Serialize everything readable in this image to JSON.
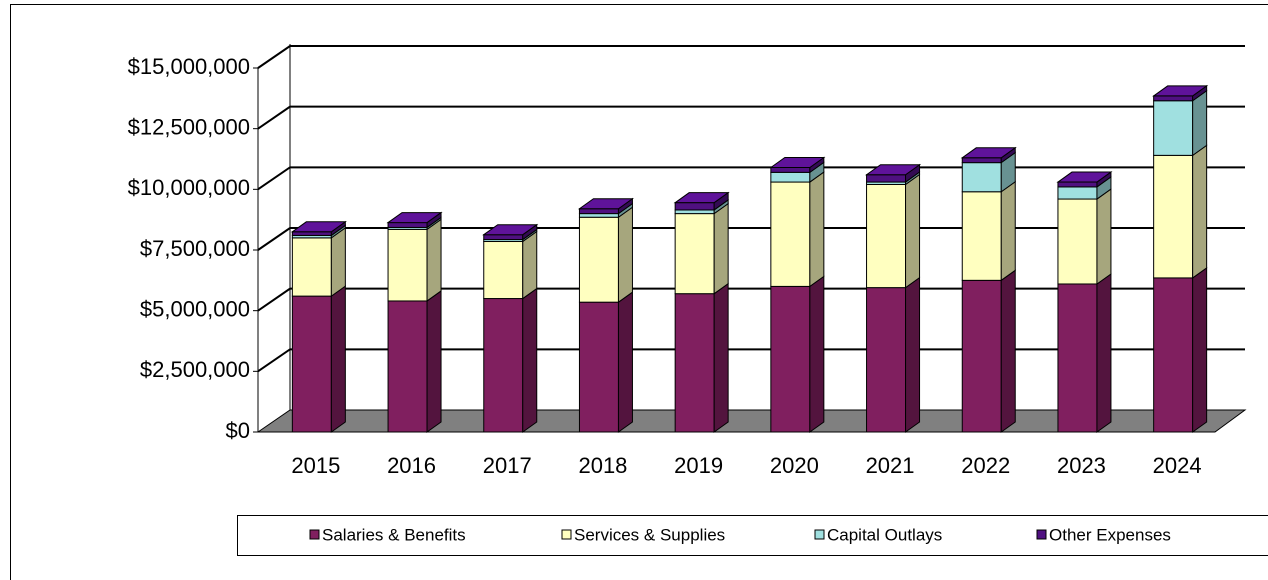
{
  "chart_data": {
    "type": "bar3d_stacked",
    "categories": [
      "2015",
      "2016",
      "2017",
      "2018",
      "2019",
      "2020",
      "2021",
      "2022",
      "2023",
      "2024"
    ],
    "series": [
      {
        "name": "Salaries & Benefits",
        "color": "#801f5f",
        "values": [
          5600000,
          5400000,
          5500000,
          5350000,
          5700000,
          6000000,
          5950000,
          6250000,
          6100000,
          6350000
        ]
      },
      {
        "name": "Services & Supplies",
        "color": "#ffffc0",
        "values": [
          2400000,
          2950000,
          2350000,
          3500000,
          3300000,
          4300000,
          4250000,
          3650000,
          3500000,
          5050000
        ]
      },
      {
        "name": "Capital Outlays",
        "color": "#a0e0e0",
        "values": [
          100000,
          80000,
          80000,
          150000,
          150000,
          400000,
          100000,
          1200000,
          500000,
          2250000
        ]
      },
      {
        "name": "Other Expenses",
        "color": "#4f1080",
        "values": [
          150000,
          200000,
          200000,
          200000,
          300000,
          200000,
          300000,
          200000,
          200000,
          200000
        ]
      }
    ],
    "ylim": [
      0,
      15000000
    ],
    "yticks": [
      {
        "value": 0,
        "label": "$0"
      },
      {
        "value": 2500000,
        "label": "$2,500,000"
      },
      {
        "value": 5000000,
        "label": "$5,000,000"
      },
      {
        "value": 7500000,
        "label": "$7,500,000"
      },
      {
        "value": 10000000,
        "label": "$10,000,000"
      },
      {
        "value": 12500000,
        "label": "$12,500,000"
      },
      {
        "value": 15000000,
        "label": "$15,000,000"
      }
    ],
    "grid": true
  }
}
